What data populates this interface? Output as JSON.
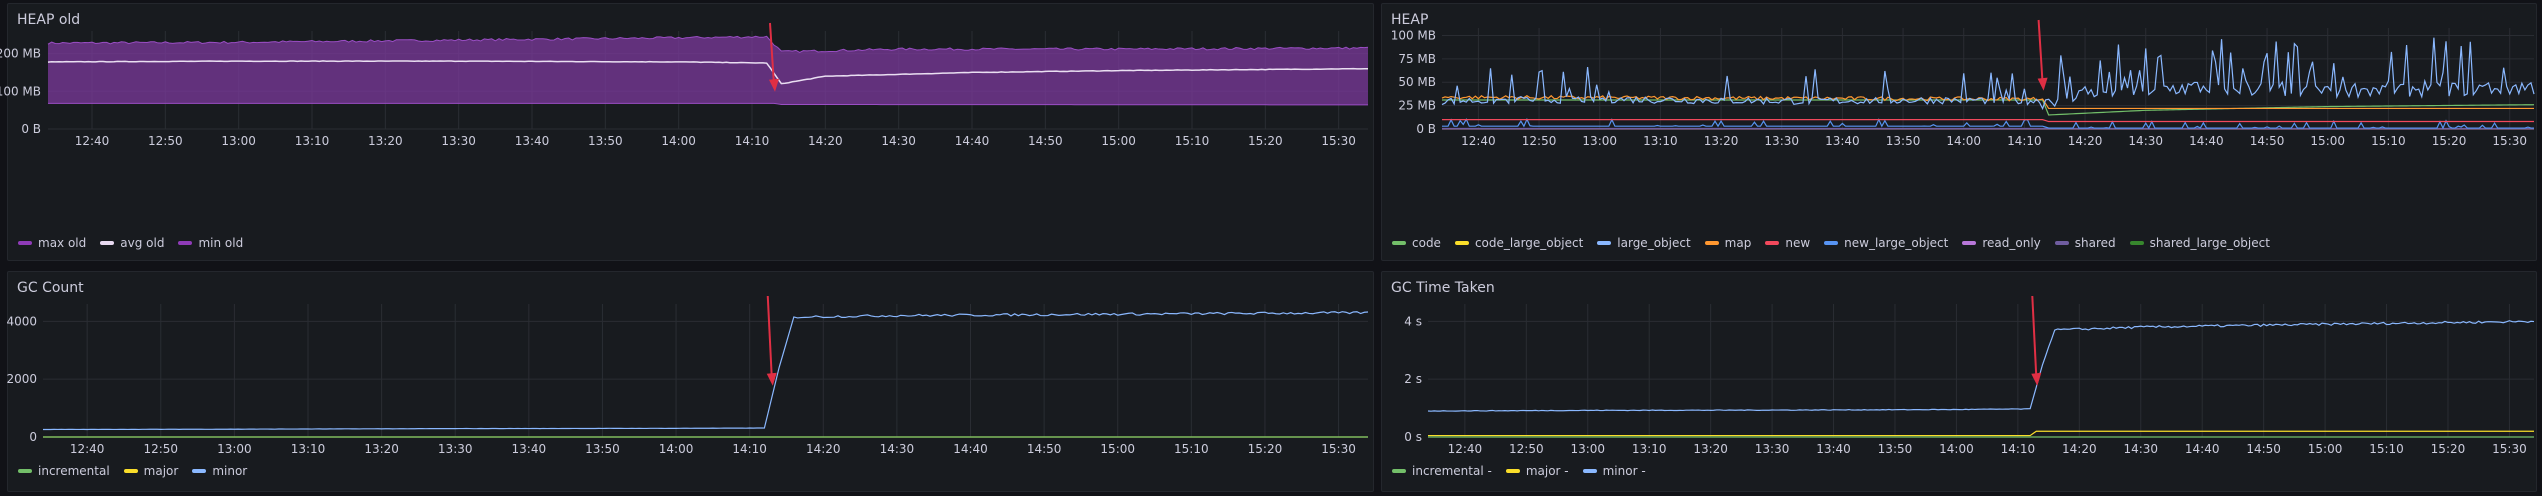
{
  "panels": [
    {
      "title": "HEAP old",
      "legend": [
        {
          "label": "max old",
          "color": "#8f3bb8"
        },
        {
          "label": "avg old",
          "color": "#e8d9f0"
        },
        {
          "label": "min old",
          "color": "#8f3bb8"
        }
      ]
    },
    {
      "title": "HEAP",
      "legend": [
        {
          "label": "code",
          "color": "#73bf69"
        },
        {
          "label": "code_large_object",
          "color": "#fade2a"
        },
        {
          "label": "large_object",
          "color": "#8ab8ff"
        },
        {
          "label": "map",
          "color": "#ff9830"
        },
        {
          "label": "new",
          "color": "#f2495c"
        },
        {
          "label": "new_large_object",
          "color": "#5794f2"
        },
        {
          "label": "read_only",
          "color": "#b877d9"
        },
        {
          "label": "shared",
          "color": "#705da0"
        },
        {
          "label": "shared_large_object",
          "color": "#37872d"
        }
      ]
    },
    {
      "title": "GC Count",
      "legend": [
        {
          "label": "incremental",
          "color": "#73bf69"
        },
        {
          "label": "major",
          "color": "#fade2a"
        },
        {
          "label": "minor",
          "color": "#8ab8ff"
        }
      ]
    },
    {
      "title": "GC Time Taken",
      "legend": [
        {
          "label": "incremental -",
          "color": "#73bf69"
        },
        {
          "label": "major -",
          "color": "#fade2a"
        },
        {
          "label": "minor -",
          "color": "#8ab8ff"
        }
      ]
    }
  ],
  "chart_data": [
    {
      "type": "area",
      "title": "HEAP old",
      "x_ticks": [
        "12:40",
        "12:50",
        "13:00",
        "13:10",
        "13:20",
        "13:30",
        "13:40",
        "13:50",
        "14:00",
        "14:10",
        "14:20",
        "14:30",
        "14:40",
        "14:50",
        "15:00",
        "15:10",
        "15:20",
        "15:30"
      ],
      "y_ticks": [
        "0 B",
        "100 MB",
        "200 MB"
      ],
      "ylim": [
        0,
        260
      ],
      "y_unit": "MB",
      "xlim": [
        "12:34",
        "15:34"
      ],
      "series": [
        {
          "name": "max old",
          "band": "upper",
          "x": [
            "12:34",
            "13:00",
            "13:30",
            "14:00",
            "14:12",
            "14:14",
            "14:30",
            "15:00",
            "15:34"
          ],
          "values": [
            228,
            230,
            236,
            242,
            245,
            205,
            212,
            212,
            215
          ]
        },
        {
          "name": "avg old",
          "x": [
            "12:34",
            "13:00",
            "13:30",
            "14:00",
            "14:12",
            "14:14",
            "14:20",
            "14:40",
            "15:00",
            "15:34"
          ],
          "values": [
            178,
            180,
            180,
            178,
            175,
            120,
            140,
            150,
            155,
            160
          ]
        },
        {
          "name": "min old",
          "band": "lower",
          "x": [
            "12:34",
            "14:13",
            "14:14",
            "15:34"
          ],
          "values": [
            68,
            68,
            65,
            64
          ]
        }
      ],
      "annotation": {
        "type": "arrow",
        "color": "#e02f44",
        "x": "14:13"
      }
    },
    {
      "type": "line",
      "title": "HEAP",
      "x_ticks": [
        "12:40",
        "12:50",
        "13:00",
        "13:10",
        "13:20",
        "13:30",
        "13:40",
        "13:50",
        "14:00",
        "14:10",
        "14:20",
        "14:30",
        "14:40",
        "14:50",
        "15:00",
        "15:10",
        "15:20",
        "15:30"
      ],
      "y_ticks": [
        "0 B",
        "25 MB",
        "50 MB",
        "75 MB",
        "100 MB"
      ],
      "ylim": [
        0,
        108
      ],
      "y_unit": "MB",
      "xlim": [
        "12:34",
        "15:34"
      ],
      "series": [
        {
          "name": "large_object",
          "x": [
            "12:34",
            "13:00",
            "13:30",
            "14:00",
            "14:13",
            "14:20",
            "14:40",
            "15:00",
            "15:34"
          ],
          "values": [
            30,
            32,
            30,
            31,
            30,
            40,
            45,
            42,
            45
          ]
        },
        {
          "name": "map",
          "x": [
            "12:34",
            "14:13",
            "14:14",
            "15:34"
          ],
          "values": [
            34,
            32,
            22,
            22
          ]
        },
        {
          "name": "new",
          "x": [
            "12:34",
            "14:13",
            "14:14",
            "15:34"
          ],
          "values": [
            10,
            10,
            8,
            8
          ]
        },
        {
          "name": "code",
          "x": [
            "12:34",
            "14:13",
            "14:14",
            "14:30",
            "15:00",
            "15:34"
          ],
          "values": [
            31,
            31,
            15,
            20,
            24,
            26
          ]
        },
        {
          "name": "new_large_object",
          "x": [
            "12:34",
            "14:13",
            "14:14",
            "15:34"
          ],
          "values": [
            3,
            3,
            1,
            1
          ]
        },
        {
          "name": "shared",
          "x": [
            "12:34",
            "15:34"
          ],
          "values": [
            0.5,
            0.5
          ]
        },
        {
          "name": "read_only",
          "x": [
            "12:34",
            "15:34"
          ],
          "values": [
            0.3,
            0.3
          ]
        },
        {
          "name": "code_large_object",
          "x": [
            "12:34",
            "15:34"
          ],
          "values": [
            0.2,
            0.2
          ]
        },
        {
          "name": "shared_large_object",
          "x": [
            "12:34",
            "15:34"
          ],
          "values": [
            0.1,
            0.1
          ]
        }
      ],
      "annotation": {
        "type": "arrow",
        "color": "#e02f44",
        "x": "14:13"
      }
    },
    {
      "type": "line",
      "title": "GC Count",
      "x_ticks": [
        "12:40",
        "12:50",
        "13:00",
        "13:10",
        "13:20",
        "13:30",
        "13:40",
        "13:50",
        "14:00",
        "14:10",
        "14:20",
        "14:30",
        "14:40",
        "14:50",
        "15:00",
        "15:10",
        "15:20",
        "15:30"
      ],
      "y_ticks": [
        "0",
        "2000",
        "4000"
      ],
      "ylim": [
        0,
        4600
      ],
      "xlim": [
        "12:34",
        "15:34"
      ],
      "series": [
        {
          "name": "minor",
          "x": [
            "12:34",
            "13:00",
            "13:30",
            "14:00",
            "14:12",
            "14:14",
            "14:16",
            "14:30",
            "15:00",
            "15:34"
          ],
          "values": [
            260,
            270,
            290,
            300,
            310,
            2400,
            4150,
            4200,
            4250,
            4300
          ]
        },
        {
          "name": "incremental",
          "x": [
            "12:34",
            "15:34"
          ],
          "values": [
            0,
            0
          ]
        },
        {
          "name": "major",
          "x": [
            "12:34",
            "15:34"
          ],
          "values": [
            0,
            0
          ]
        }
      ],
      "annotation": {
        "type": "arrow",
        "color": "#e02f44",
        "x": "14:13"
      }
    },
    {
      "type": "line",
      "title": "GC Time Taken",
      "x_ticks": [
        "12:40",
        "12:50",
        "13:00",
        "13:10",
        "13:20",
        "13:30",
        "13:40",
        "13:50",
        "14:00",
        "14:10",
        "14:20",
        "14:30",
        "14:40",
        "14:50",
        "15:00",
        "15:10",
        "15:20",
        "15:30"
      ],
      "y_ticks": [
        "0 s",
        "2 s",
        "4 s"
      ],
      "ylim": [
        0,
        4.6
      ],
      "y_unit": "s",
      "xlim": [
        "12:34",
        "15:34"
      ],
      "series": [
        {
          "name": "minor -",
          "x": [
            "12:34",
            "13:00",
            "13:30",
            "14:00",
            "14:12",
            "14:14",
            "14:16",
            "14:30",
            "15:00",
            "15:34"
          ],
          "values": [
            0.9,
            0.92,
            0.93,
            0.95,
            0.97,
            2.5,
            3.7,
            3.8,
            3.9,
            4.0
          ]
        },
        {
          "name": "major -",
          "x": [
            "12:34",
            "14:12",
            "14:13",
            "15:34"
          ],
          "values": [
            0.05,
            0.05,
            0.2,
            0.2
          ]
        },
        {
          "name": "incremental -",
          "x": [
            "12:34",
            "15:34"
          ],
          "values": [
            0,
            0
          ]
        }
      ],
      "annotation": {
        "type": "arrow",
        "color": "#e02f44",
        "x": "14:13"
      }
    }
  ]
}
